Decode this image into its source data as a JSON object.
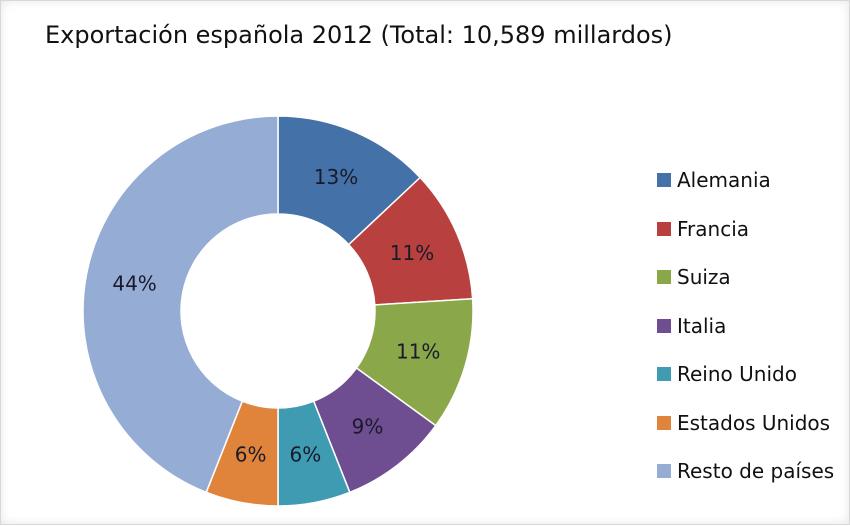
{
  "chart_data": {
    "type": "pie",
    "variant": "donut",
    "title": "Exportación española  2012 (Total: 10,589 millardos)",
    "categories": [
      "Alemania",
      "Francia",
      "Suiza",
      "Italia",
      "Reino Unido",
      "Estados Unidos",
      "Resto de países"
    ],
    "values": [
      13,
      11,
      11,
      9,
      6,
      6,
      44
    ],
    "data_labels": [
      "13%",
      "11%",
      "11%",
      "9%",
      "6%",
      "6%",
      "44%"
    ],
    "colors": [
      "#4472a8",
      "#b8403e",
      "#8aa84a",
      "#6e4d91",
      "#3f9bb1",
      "#e0843b",
      "#95acd5"
    ],
    "legend_position": "right"
  }
}
